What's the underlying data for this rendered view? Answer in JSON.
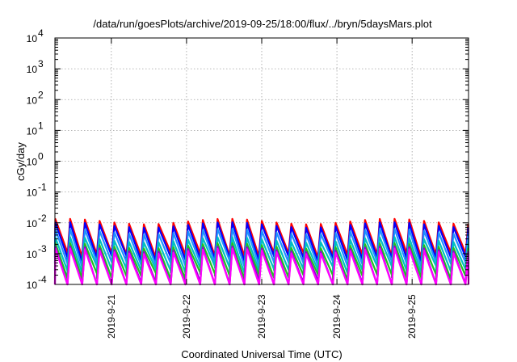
{
  "chart_data": {
    "type": "line",
    "title": "/data/run/goesPlots/archive/2019-09-25/18:00/flux/../bryn/5daysMars.plot",
    "xlabel": "Coordinated Universal Time (UTC)",
    "ylabel": "cGy/day",
    "yscale": "log",
    "ylim": [
      0.0001,
      10000
    ],
    "xlim": [
      "2019-09-20 06:00",
      "2019-09-25 18:00"
    ],
    "grid": true,
    "legend": "none",
    "y_ticks": [
      {
        "value": 0.0001,
        "base": "10",
        "exp": "-4"
      },
      {
        "value": 0.001,
        "base": "10",
        "exp": "-3"
      },
      {
        "value": 0.01,
        "base": "10",
        "exp": "-2"
      },
      {
        "value": 0.1,
        "base": "10",
        "exp": "-1"
      },
      {
        "value": 1,
        "base": "10",
        "exp": "0"
      },
      {
        "value": 10,
        "base": "10",
        "exp": "1"
      },
      {
        "value": 100,
        "base": "10",
        "exp": "2"
      },
      {
        "value": 1000,
        "base": "10",
        "exp": "3"
      },
      {
        "value": 10000,
        "base": "10",
        "exp": "4"
      }
    ],
    "x_ticks": [
      "2019-9-21",
      "2019-9-22",
      "2019-9-23",
      "2019-9-24",
      "2019-9-25"
    ],
    "series": [
      {
        "color": "#ff0000",
        "peak": 0.011,
        "trough": 0.0011,
        "depth_jitter": 0.12
      },
      {
        "color": "#0000ff",
        "peak": 0.0085,
        "trough": 0.00085,
        "depth_jitter": 0.15
      },
      {
        "color": "#1e90ff",
        "peak": 0.0052,
        "trough": 0.0006,
        "depth_jitter": 0.15
      },
      {
        "color": "#00c0c0",
        "peak": 0.0028,
        "trough": 0.0004,
        "depth_jitter": 0.18
      },
      {
        "color": "#20c020",
        "peak": 0.0018,
        "trough": 0.00025,
        "depth_jitter": 0.2
      },
      {
        "color": "#9400d3",
        "peak": 0.0014,
        "trough": 0.00014,
        "depth_jitter": 0.3
      },
      {
        "color": "#ff00ff",
        "peak": 0.0012,
        "trough": 0.0001,
        "depth_jitter": 0.35
      }
    ]
  }
}
